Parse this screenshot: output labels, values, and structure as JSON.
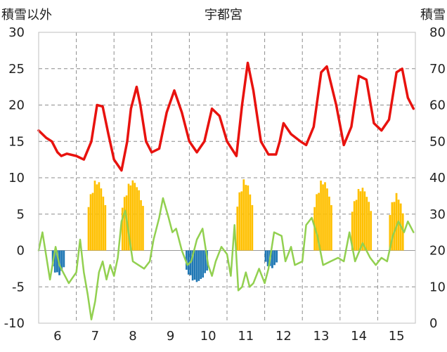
{
  "chart_data": {
    "type": "line",
    "title": "宇都宮",
    "left_axis_label": "積雪以外",
    "right_axis_label": "積雪",
    "left_ylim": [
      -10,
      30
    ],
    "left_ticks": [
      "-10",
      "-5",
      "0",
      "5",
      "10",
      "15",
      "20",
      "25",
      "30"
    ],
    "right_ylim": [
      0,
      80
    ],
    "right_ticks": [
      "0",
      "10",
      "20",
      "30",
      "40",
      "50",
      "60",
      "70",
      "80"
    ],
    "xlim": [
      5.5,
      15.5
    ],
    "x_ticks": [
      "6",
      "7",
      "8",
      "9",
      "10",
      "11",
      "12",
      "13",
      "14",
      "15"
    ],
    "grid": true,
    "colors": {
      "red": "#e8120e",
      "green": "#92d050",
      "gold": "#ffc000",
      "blue": "#1f77b4"
    },
    "series": [
      {
        "color": "red",
        "kind": "line",
        "x": [
          5.5,
          5.7,
          5.85,
          6.0,
          6.1,
          6.25,
          6.5,
          6.7,
          6.9,
          7.05,
          7.2,
          7.35,
          7.5,
          7.7,
          7.85,
          7.95,
          8.1,
          8.2,
          8.35,
          8.5,
          8.7,
          8.9,
          9.1,
          9.3,
          9.5,
          9.7,
          9.9,
          10.1,
          10.3,
          10.5,
          10.75,
          10.9,
          11.05,
          11.2,
          11.4,
          11.6,
          11.8,
          11.9,
          12.0,
          12.2,
          12.45,
          12.6,
          12.8,
          13.0,
          13.15,
          13.4,
          13.6,
          13.8,
          14.0,
          14.2,
          14.4,
          14.6,
          14.8,
          15.0,
          15.15,
          15.3,
          15.45
        ],
        "values": [
          16.5,
          15.5,
          15.0,
          13.5,
          13.0,
          13.3,
          13.0,
          12.5,
          15.0,
          20.0,
          19.8,
          16.0,
          12.5,
          11.0,
          15.0,
          19.5,
          22.5,
          20.0,
          15.0,
          13.5,
          14.0,
          19.0,
          22.0,
          19.0,
          15.0,
          13.5,
          15.0,
          19.5,
          18.5,
          15.0,
          13.0,
          20.0,
          25.8,
          22.0,
          15.0,
          13.2,
          13.2,
          15.0,
          17.5,
          16.0,
          15.0,
          14.5,
          17.0,
          24.5,
          25.3,
          20.0,
          14.5,
          17.0,
          24.0,
          23.5,
          17.5,
          16.5,
          18.0,
          24.5,
          25.0,
          21.0,
          19.5
        ]
      },
      {
        "color": "green",
        "kind": "line",
        "x": [
          5.5,
          5.6,
          5.8,
          5.95,
          6.05,
          6.15,
          6.3,
          6.5,
          6.6,
          6.7,
          6.8,
          6.9,
          7.0,
          7.1,
          7.2,
          7.3,
          7.4,
          7.5,
          7.6,
          7.7,
          7.8,
          7.9,
          8.0,
          8.15,
          8.3,
          8.45,
          8.55,
          8.7,
          8.8,
          8.95,
          9.05,
          9.15,
          9.3,
          9.45,
          9.55,
          9.7,
          9.85,
          10.0,
          10.1,
          10.2,
          10.35,
          10.5,
          10.6,
          10.7,
          10.8,
          10.9,
          11.0,
          11.1,
          11.2,
          11.35,
          11.5,
          11.6,
          11.75,
          11.95,
          12.05,
          12.2,
          12.3,
          12.5,
          12.6,
          12.75,
          12.9,
          13.05,
          13.25,
          13.45,
          13.6,
          13.75,
          13.9,
          14.1,
          14.3,
          14.45,
          14.6,
          14.75,
          14.9,
          15.05,
          15.2,
          15.3,
          15.45
        ],
        "values": [
          0,
          2.5,
          -4.0,
          0.5,
          -2.0,
          -3.0,
          -4.5,
          -3.0,
          1.5,
          -3.0,
          -6.0,
          -9.5,
          -7.0,
          -3.0,
          -1.5,
          -4.0,
          -2.0,
          -3.5,
          -1.0,
          4.0,
          5.5,
          2.0,
          -1.5,
          -2.0,
          -2.5,
          -1.5,
          1.5,
          4.5,
          7.2,
          4.5,
          2.5,
          3.0,
          0.0,
          -2.0,
          -1.5,
          1.5,
          3.0,
          -2.0,
          -3.5,
          -1.5,
          0.5,
          -0.5,
          -3.5,
          3.5,
          -5.5,
          -5.0,
          -3.0,
          -5.0,
          -4.5,
          -2.5,
          -4.5,
          -2.5,
          2.5,
          2.0,
          -1.5,
          0.5,
          -2.0,
          -1.5,
          3.5,
          4.5,
          2.0,
          -2.0,
          -1.5,
          -1.0,
          -1.5,
          2.5,
          -1.5,
          1.0,
          -1.0,
          -2.0,
          -1.0,
          -1.5,
          2.0,
          4.0,
          2.5,
          4.0,
          2.5
        ]
      },
      {
        "color": "gold",
        "kind": "bar",
        "axis": "right",
        "ranges": [
          {
            "from": 6.8,
            "to": 7.3,
            "peak": 40
          },
          {
            "from": 7.7,
            "to": 8.3,
            "peak": 40
          },
          {
            "from": 10.75,
            "to": 11.2,
            "peak": 40
          },
          {
            "from": 12.8,
            "to": 13.3,
            "peak": 40
          },
          {
            "from": 13.8,
            "to": 14.35,
            "peak": 38
          },
          {
            "from": 14.8,
            "to": 15.2,
            "peak": 36
          }
        ]
      },
      {
        "color": "blue",
        "kind": "bar",
        "ranges": [
          {
            "from": 5.85,
            "to": 6.2,
            "peak": -3.5
          },
          {
            "from": 9.4,
            "to": 10.0,
            "peak": -4.5
          },
          {
            "from": 11.5,
            "to": 11.85,
            "peak": -2.5
          }
        ]
      }
    ]
  }
}
